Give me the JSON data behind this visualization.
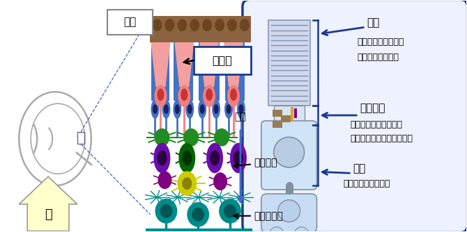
{
  "bg_color": "#ffffff",
  "right_box_color": "#1a3a8c",
  "right_box_fill": "#eef2ff",
  "label_網膜": "網膜",
  "label_視細胞": "視細胞",
  "label_信号": "信号",
  "label_双極細胞": "双極細胞",
  "label_神経節細胞": "神経節細胞",
  "label_光": "光",
  "label_外節": "外節",
  "label_外節_desc1": "・光エネルギー吸収",
  "label_外節_desc2": "・光シグナル伝達",
  "label_結合線毛": "結合線毛",
  "label_結合線毛_desc1": "・内節と外節をつなぐ",
  "label_結合線毛_desc2": "・特定の分子を外節へ輸送",
  "label_内節": "内節",
  "label_内節_desc1": "・タンパク質の合成"
}
